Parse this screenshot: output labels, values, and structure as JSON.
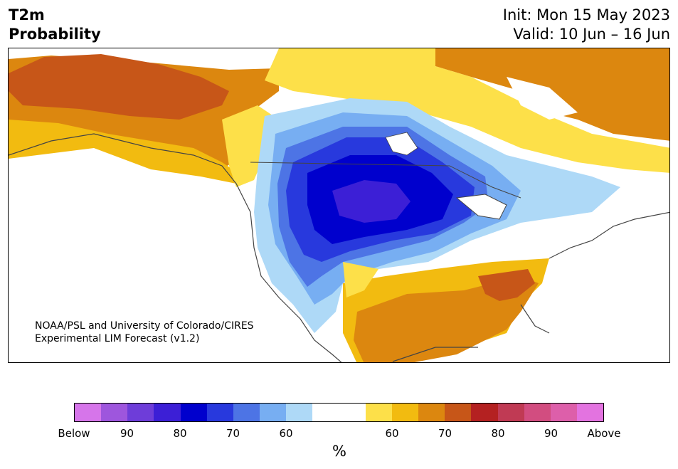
{
  "header": {
    "title_line1": "T2m",
    "title_line2": "Probability",
    "init": "Init: Mon 15 May 2023",
    "valid": "Valid: 10 Jun – 16 Jun"
  },
  "credit": {
    "line1": "NOAA/PSL and University of Colorado/CIRES",
    "line2": "Experimental LIM Forecast (v1.2)"
  },
  "colorbar": {
    "colors": [
      "#d675ea",
      "#9e56dd",
      "#6e3dd9",
      "#3c1fd6",
      "#0000cd",
      "#2839dd",
      "#4d74e5",
      "#77aef2",
      "#aed9f7",
      "#ffffff",
      "#ffffff",
      "#fde049",
      "#f2bb10",
      "#dc870f",
      "#c75618",
      "#b42121",
      "#c03a54",
      "#d24d80",
      "#dd5faa",
      "#e373e0"
    ],
    "labels": [
      "Below",
      "90",
      "80",
      "70",
      "60",
      "60",
      "70",
      "80",
      "90",
      "Above"
    ],
    "unit": "%"
  },
  "map": {
    "categories": {
      "below_80": "#0000cd",
      "below_70": "#2839dd",
      "below_60": "#77aef2",
      "near_normal": "#ffffff",
      "above_60": "#fde049",
      "above_70": "#dc870f",
      "above_80": "#c75618"
    }
  }
}
